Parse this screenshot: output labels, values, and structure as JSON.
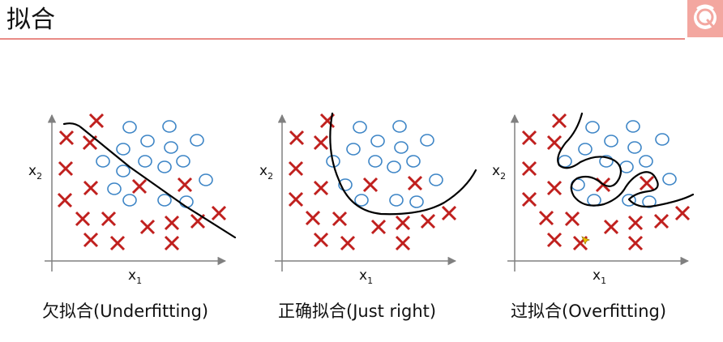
{
  "page": {
    "title": "拟合"
  },
  "panels": [
    {
      "caption": "欠拟合(Underfitting)",
      "x_label": "x",
      "x_sub": "1",
      "y_label": "x",
      "y_sub": "2"
    },
    {
      "caption": "正确拟合(Just right)",
      "x_label": "x",
      "x_sub": "1",
      "y_label": "x",
      "y_sub": "2"
    },
    {
      "caption": "过拟合(Overfitting)",
      "x_label": "x",
      "x_sub": "1",
      "y_label": "x",
      "y_sub": "2"
    }
  ],
  "colors": {
    "cross": "#c0201e",
    "circle": "#3d85c6",
    "axis": "#808080",
    "boundary": "#000000",
    "header_line": "#e98b86"
  }
}
